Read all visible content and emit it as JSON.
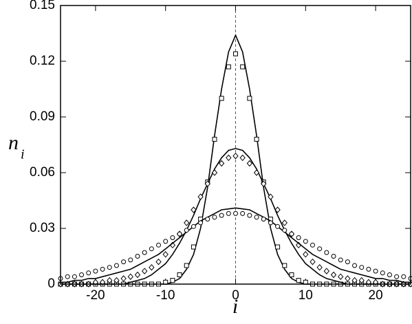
{
  "chart_data": {
    "type": "line",
    "xlabel": "i",
    "ylabel": "n",
    "ylabel_sub": "i",
    "xlim": [
      -25,
      25
    ],
    "ylim": [
      0,
      0.15
    ],
    "xticks": [
      -20,
      -10,
      0,
      10,
      20
    ],
    "yticks": [
      0,
      0.03,
      0.06,
      0.09,
      0.12,
      0.15
    ],
    "vline": 0,
    "x": [
      -25,
      -24,
      -23,
      -22,
      -21,
      -20,
      -19,
      -18,
      -17,
      -16,
      -15,
      -14,
      -13,
      -12,
      -11,
      -10,
      -9,
      -8,
      -7,
      -6,
      -5,
      -4,
      -3,
      -2,
      -1,
      0,
      1,
      2,
      3,
      4,
      5,
      6,
      7,
      8,
      9,
      10,
      11,
      12,
      13,
      14,
      15,
      16,
      17,
      18,
      19,
      20,
      21,
      22,
      23,
      24,
      25
    ],
    "series": [
      {
        "style": "line",
        "color": "#000000",
        "values": [
          0,
          0,
          0,
          0,
          0,
          0,
          0,
          0,
          0,
          0,
          0,
          0,
          0,
          0,
          0,
          0,
          0.001,
          0.003,
          0.008,
          0.016,
          0.03,
          0.052,
          0.08,
          0.105,
          0.125,
          0.134,
          0.125,
          0.105,
          0.08,
          0.052,
          0.03,
          0.016,
          0.008,
          0.003,
          0.001,
          0,
          0,
          0,
          0,
          0,
          0,
          0,
          0,
          0,
          0,
          0,
          0,
          0,
          0,
          0,
          0
        ]
      },
      {
        "style": "marker",
        "marker": "square",
        "color": "#000000",
        "values": [
          0,
          0,
          0,
          0,
          0,
          0,
          0,
          0,
          0,
          0,
          0,
          0,
          0,
          0,
          0,
          0.001,
          0.002,
          0.005,
          0.01,
          0.02,
          0.035,
          0.055,
          0.078,
          0.1,
          0.117,
          0.124,
          0.117,
          0.1,
          0.078,
          0.055,
          0.035,
          0.02,
          0.01,
          0.005,
          0.002,
          0.001,
          0,
          0,
          0,
          0,
          0,
          0,
          0,
          0,
          0,
          0,
          0,
          0,
          0,
          0,
          0
        ]
      },
      {
        "style": "line",
        "color": "#000000",
        "values": [
          0,
          0,
          0,
          0,
          0,
          0,
          0,
          0,
          0,
          0,
          0.001,
          0.002,
          0.003,
          0.005,
          0.008,
          0.011,
          0.016,
          0.022,
          0.029,
          0.037,
          0.046,
          0.054,
          0.062,
          0.068,
          0.072,
          0.073,
          0.072,
          0.068,
          0.062,
          0.054,
          0.046,
          0.037,
          0.029,
          0.022,
          0.016,
          0.011,
          0.008,
          0.005,
          0.003,
          0.002,
          0.001,
          0,
          0,
          0,
          0,
          0,
          0,
          0,
          0,
          0,
          0
        ]
      },
      {
        "style": "marker",
        "marker": "diamond",
        "color": "#000000",
        "values": [
          0,
          0,
          0,
          0,
          0,
          0.001,
          0.001,
          0.002,
          0.002,
          0.003,
          0.004,
          0.005,
          0.007,
          0.009,
          0.012,
          0.016,
          0.021,
          0.027,
          0.033,
          0.04,
          0.047,
          0.054,
          0.06,
          0.065,
          0.068,
          0.069,
          0.068,
          0.065,
          0.06,
          0.054,
          0.047,
          0.04,
          0.033,
          0.027,
          0.021,
          0.016,
          0.012,
          0.009,
          0.007,
          0.005,
          0.004,
          0.003,
          0.002,
          0.002,
          0.001,
          0.001,
          0,
          0,
          0,
          0,
          0
        ]
      },
      {
        "style": "line",
        "color": "#000000",
        "values": [
          0.001,
          0.001,
          0.002,
          0.002,
          0.003,
          0.003,
          0.004,
          0.005,
          0.006,
          0.007,
          0.008,
          0.01,
          0.012,
          0.014,
          0.016,
          0.019,
          0.022,
          0.025,
          0.028,
          0.031,
          0.034,
          0.036,
          0.038,
          0.04,
          0.0405,
          0.041,
          0.0405,
          0.04,
          0.038,
          0.036,
          0.034,
          0.031,
          0.028,
          0.025,
          0.022,
          0.019,
          0.016,
          0.014,
          0.012,
          0.01,
          0.008,
          0.007,
          0.006,
          0.005,
          0.004,
          0.003,
          0.003,
          0.002,
          0.002,
          0.001,
          0.001
        ]
      },
      {
        "style": "marker",
        "marker": "circle",
        "color": "#000000",
        "values": [
          0.003,
          0.004,
          0.004,
          0.005,
          0.006,
          0.007,
          0.008,
          0.009,
          0.01,
          0.012,
          0.013,
          0.015,
          0.017,
          0.019,
          0.021,
          0.023,
          0.025,
          0.027,
          0.029,
          0.031,
          0.033,
          0.035,
          0.036,
          0.037,
          0.038,
          0.038,
          0.038,
          0.037,
          0.036,
          0.035,
          0.033,
          0.031,
          0.029,
          0.027,
          0.025,
          0.023,
          0.021,
          0.019,
          0.017,
          0.015,
          0.013,
          0.012,
          0.01,
          0.009,
          0.008,
          0.007,
          0.006,
          0.005,
          0.004,
          0.004,
          0.003
        ]
      }
    ]
  }
}
